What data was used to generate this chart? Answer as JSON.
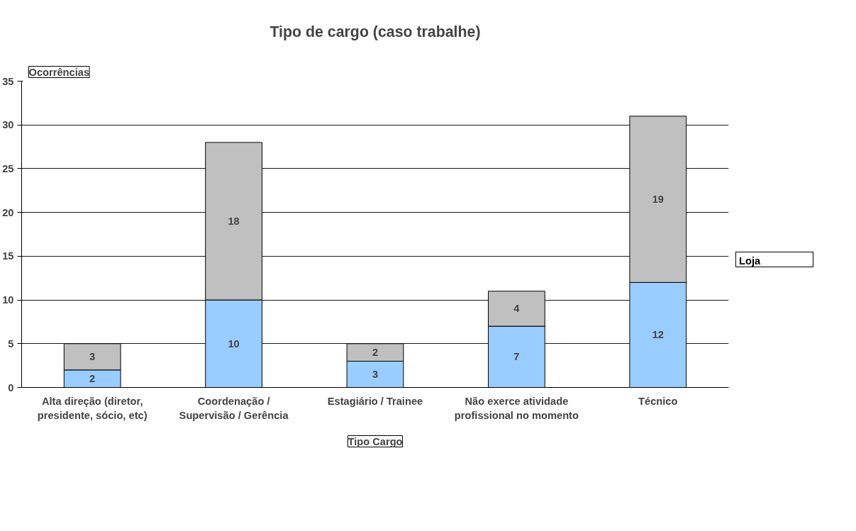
{
  "chart_data": {
    "type": "bar",
    "title": "Tipo de cargo (caso trabalhe)",
    "xlabel": "Tipo Cargo",
    "ylabel": "Ocorrências",
    "legend_title": "Loja",
    "categories": [
      "Alta direção (diretor, presidente, sócio, etc)",
      "Coordenação / Supervisão / Gerência",
      "Estagiário / Trainee",
      "Não exerce atividade profissional no momento",
      "Técnico"
    ],
    "stacked": true,
    "series": [
      {
        "color": "#99ccff",
        "values": [
          2,
          10,
          3,
          7,
          12
        ]
      },
      {
        "color": "#c0c0c0",
        "values": [
          3,
          18,
          2,
          4,
          19
        ]
      }
    ],
    "ylim": [
      0,
      35
    ],
    "yticks": [
      0,
      5,
      10,
      15,
      20,
      25,
      30,
      35
    ],
    "grid": "y",
    "data_labels": true
  }
}
